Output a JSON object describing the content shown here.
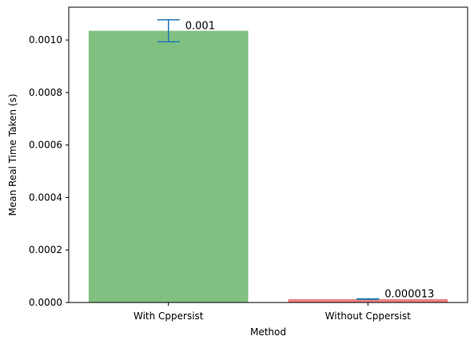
{
  "chart_data": {
    "type": "bar",
    "categories": [
      "With Cppersist",
      "Without Cppersist"
    ],
    "values": [
      0.001035,
      1.3e-05
    ],
    "errors": [
      4.2e-05,
      1e-06
    ],
    "value_labels": [
      "0.001",
      "0.000013"
    ],
    "colors": [
      "#80c080",
      "#f08080"
    ],
    "error_color": "#1f77b4",
    "xlabel": "Method",
    "ylabel": "Mean Real Time Taken (s)",
    "ylim": [
      0,
      0.001125
    ],
    "yticks": [
      0,
      0.0002,
      0.0004,
      0.0006,
      0.0008,
      0.001
    ],
    "ytick_labels": [
      "0.0000",
      "0.0002",
      "0.0004",
      "0.0006",
      "0.0008",
      "0.0010"
    ],
    "grid": false
  }
}
